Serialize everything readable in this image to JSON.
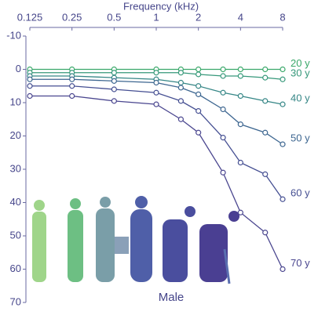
{
  "chart_data": {
    "type": "line",
    "x_label": "Frequency (kHz)",
    "caption": "Male",
    "xscale": "log",
    "yaxis_inverted": true,
    "x": [
      0.125,
      0.25,
      0.5,
      1,
      1.5,
      2,
      3,
      4,
      6,
      8
    ],
    "xlim": [
      0.125,
      8
    ],
    "xticks": [
      0.125,
      0.25,
      0.5,
      1,
      2,
      4,
      8
    ],
    "ylim": [
      -10,
      70
    ],
    "yticks": [
      -10,
      0,
      10,
      20,
      30,
      40,
      50,
      60,
      70
    ],
    "series": [
      {
        "name": "20 y",
        "color": "#3aa86a",
        "values": [
          0,
          0,
          0,
          0,
          0,
          0,
          0,
          0,
          0,
          0
        ]
      },
      {
        "name": "30 y",
        "color": "#36987a",
        "values": [
          1,
          1,
          1,
          1,
          1,
          1.5,
          2,
          2,
          2.5,
          3
        ]
      },
      {
        "name": "40 y",
        "color": "#358686",
        "values": [
          2,
          2,
          2.5,
          3,
          4,
          5,
          7,
          8,
          9.5,
          10.5
        ]
      },
      {
        "name": "50 y",
        "color": "#3d6690",
        "values": [
          3,
          3,
          3.5,
          4,
          5.5,
          7.5,
          12,
          16.5,
          19,
          22.5
        ]
      },
      {
        "name": "60 y",
        "color": "#454f92",
        "values": [
          5,
          5,
          6,
          7,
          9.5,
          12.5,
          20.5,
          28,
          31.5,
          39
        ]
      },
      {
        "name": "70 y",
        "color": "#4a468f",
        "values": [
          8,
          8,
          9.5,
          10.5,
          15,
          19,
          31,
          43,
          49,
          60
        ]
      }
    ]
  }
}
